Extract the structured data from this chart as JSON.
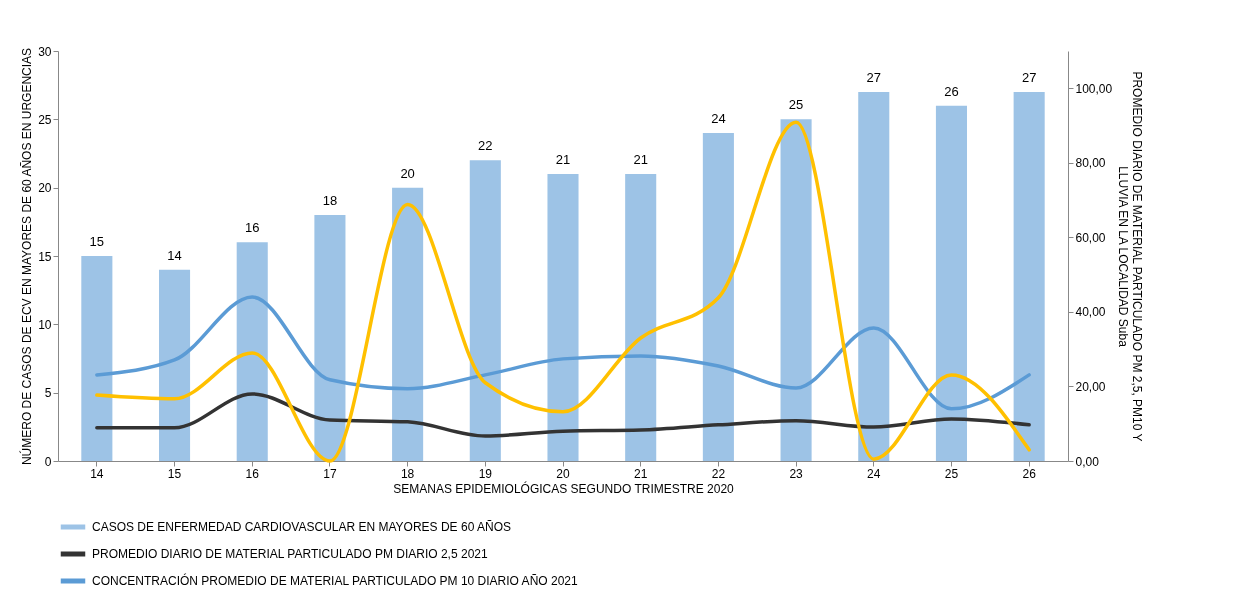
{
  "chart_data": {
    "type": "bar",
    "xlabel": "SEMANAS EPIDEMIOLÓGICAS SEGUNDO TRIMESTRE 2020",
    "ylabel": "NÚMERO DE CASOS DE ECV EN MAYORES DE 60 AÑOS  EN URGENCIAS",
    "y2label": "PROMEDIO DIARIO DE MATERIAL PARTICULADO PM 2,5, PM10 Y\nLLUVIA EN  LA LOCALIDAD Suba",
    "categories": [
      "14",
      "15",
      "16",
      "17",
      "18",
      "19",
      "20",
      "21",
      "22",
      "23",
      "24",
      "25",
      "26"
    ],
    "series": [
      {
        "name": "CASOS DE  ENFERMEDAD CARDIOVASCULAR EN MAYORES DE 60 AÑOS",
        "color": "#9dc3e6",
        "values": [
          15,
          14,
          16,
          18,
          20,
          22,
          21,
          21,
          24,
          25,
          27,
          26,
          27
        ],
        "value_labels": [
          "15",
          "14",
          "16",
          "18",
          "20",
          "22",
          "21",
          "21",
          "24",
          "25",
          "27",
          "26",
          "27"
        ]
      },
      {
        "name": "PROMEDIO DIARIO DE MATERIAL PARTICULADO PM DIARIO 2,5 2021",
        "type": "line",
        "axis": "y2",
        "color": "#333333",
        "values": [
          8.9,
          8.9,
          18,
          11,
          10.5,
          6.7,
          8,
          8.3,
          9.7,
          10.8,
          9.1,
          11.3,
          9.7
        ]
      },
      {
        "name": "CONCENTRACIÓN PROMEDIO DE MATERIAL PARTICULADO PM 10 DIARIO  AÑO 2021",
        "type": "line",
        "axis": "y2",
        "color": "#5b9bd5",
        "values": [
          23.1,
          27.1,
          44,
          21.8,
          19.4,
          23.1,
          27.4,
          28.2,
          25.5,
          19.6,
          35.7,
          14,
          23.1
        ]
      },
      {
        "type": "line",
        "axis": "y2",
        "color": "#ffc000",
        "values": [
          17.7,
          16.7,
          29,
          0,
          68.8,
          21,
          13.2,
          33,
          43.8,
          90.9,
          0.5,
          23.1,
          3
        ]
      }
    ],
    "ylim": [
      0,
      30
    ],
    "yticks": [
      0,
      5,
      10,
      15,
      20,
      25,
      30
    ],
    "y2lim": [
      0,
      110
    ],
    "y2ticks": [
      {
        "value": 0,
        "label": "0,00"
      },
      {
        "value": 20,
        "label": "20,00"
      },
      {
        "value": 40,
        "label": "40,00"
      },
      {
        "value": 60,
        "label": "60,00"
      },
      {
        "value": 80,
        "label": "80,00"
      },
      {
        "value": 100,
        "label": "100,00"
      }
    ],
    "grid": false,
    "legend": "bottom",
    "line_style": "solid",
    "marker": "none"
  }
}
